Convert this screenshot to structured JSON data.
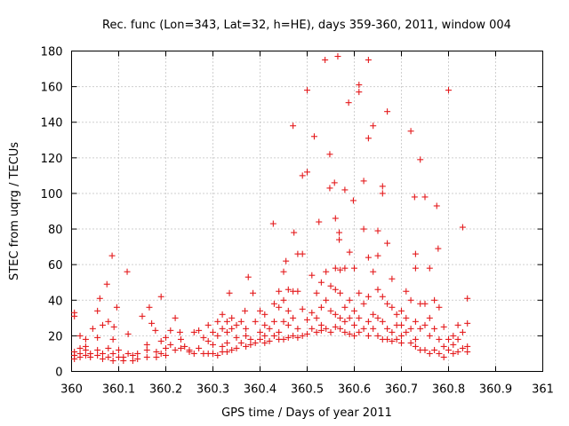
{
  "chart_data": {
    "type": "scatter",
    "title": "Rec. func (Lon=343, Lat=32, h=HE), days 359-360, 2011, window 004",
    "xlabel": "GPS time / Days of year 2011",
    "ylabel": "STEC from uqrg / TECUs",
    "xlim": [
      360,
      361
    ],
    "ylim": [
      0,
      180
    ],
    "xticks": [
      "360",
      "360.1",
      "360.2",
      "360.3",
      "360.4",
      "360.5",
      "360.6",
      "360.7",
      "360.8",
      "360.9",
      "361"
    ],
    "yticks": [
      "0",
      "20",
      "40",
      "60",
      "80",
      "100",
      "120",
      "140",
      "160",
      "180"
    ],
    "grid": true,
    "marker": "plus",
    "colors": {
      "series": "#e41a1c",
      "grid": "#a0a0a0",
      "axis": "#000000"
    },
    "series": [
      {
        "name": "STEC",
        "points": [
          [
            360.006,
            33
          ],
          [
            360.006,
            31
          ],
          [
            360.006,
            11
          ],
          [
            360.006,
            9
          ],
          [
            360.006,
            7
          ],
          [
            360.018,
            20
          ],
          [
            360.018,
            13
          ],
          [
            360.018,
            10
          ],
          [
            360.018,
            8
          ],
          [
            360.03,
            18
          ],
          [
            360.03,
            14
          ],
          [
            360.03,
            12
          ],
          [
            360.03,
            9
          ],
          [
            360.04,
            10
          ],
          [
            360.04,
            8
          ],
          [
            360.045,
            24
          ],
          [
            360.055,
            34
          ],
          [
            360.055,
            19
          ],
          [
            360.055,
            12
          ],
          [
            360.055,
            9
          ],
          [
            360.06,
            41
          ],
          [
            360.066,
            26
          ],
          [
            360.066,
            10
          ],
          [
            360.066,
            7
          ],
          [
            360.075,
            49
          ],
          [
            360.078,
            28
          ],
          [
            360.078,
            13
          ],
          [
            360.078,
            8
          ],
          [
            360.086,
            65
          ],
          [
            360.088,
            18
          ],
          [
            360.088,
            10
          ],
          [
            360.088,
            6
          ],
          [
            360.09,
            25
          ],
          [
            360.096,
            36
          ],
          [
            360.1,
            12
          ],
          [
            360.1,
            8
          ],
          [
            360.11,
            8
          ],
          [
            360.11,
            6
          ],
          [
            360.118,
            56
          ],
          [
            360.12,
            21
          ],
          [
            360.12,
            10
          ],
          [
            360.13,
            9
          ],
          [
            360.13,
            6
          ],
          [
            360.14,
            10
          ],
          [
            360.14,
            7
          ],
          [
            360.15,
            31
          ],
          [
            360.16,
            15
          ],
          [
            360.16,
            12
          ],
          [
            360.16,
            8
          ],
          [
            360.165,
            36
          ],
          [
            360.17,
            27
          ],
          [
            360.178,
            23
          ],
          [
            360.18,
            11
          ],
          [
            360.18,
            8
          ],
          [
            360.19,
            42
          ],
          [
            360.19,
            17
          ],
          [
            360.19,
            10
          ],
          [
            360.2,
            19
          ],
          [
            360.2,
            13
          ],
          [
            360.2,
            9
          ],
          [
            360.21,
            23
          ],
          [
            360.21,
            15
          ],
          [
            360.22,
            30
          ],
          [
            360.22,
            12
          ],
          [
            360.23,
            22
          ],
          [
            360.232,
            18
          ],
          [
            360.232,
            13
          ],
          [
            360.24,
            14
          ],
          [
            360.25,
            12
          ],
          [
            360.25,
            11
          ],
          [
            360.26,
            22
          ],
          [
            360.26,
            10
          ],
          [
            360.27,
            23
          ],
          [
            360.27,
            13
          ],
          [
            360.28,
            19
          ],
          [
            360.28,
            10
          ],
          [
            360.29,
            26
          ],
          [
            360.29,
            17
          ],
          [
            360.29,
            10
          ],
          [
            360.3,
            22
          ],
          [
            360.3,
            15
          ],
          [
            360.3,
            10
          ],
          [
            360.31,
            28
          ],
          [
            360.31,
            20
          ],
          [
            360.31,
            9
          ],
          [
            360.32,
            32
          ],
          [
            360.32,
            24
          ],
          [
            360.32,
            14
          ],
          [
            360.32,
            11
          ],
          [
            360.33,
            28
          ],
          [
            360.33,
            22
          ],
          [
            360.33,
            16
          ],
          [
            360.33,
            11
          ],
          [
            360.335,
            44
          ],
          [
            360.34,
            30
          ],
          [
            360.34,
            24
          ],
          [
            360.34,
            12
          ],
          [
            360.35,
            26
          ],
          [
            360.35,
            19
          ],
          [
            360.35,
            13
          ],
          [
            360.36,
            28
          ],
          [
            360.36,
            16
          ],
          [
            360.368,
            34
          ],
          [
            360.37,
            24
          ],
          [
            360.37,
            20
          ],
          [
            360.37,
            14
          ],
          [
            360.375,
            53
          ],
          [
            360.38,
            18
          ],
          [
            360.38,
            15
          ],
          [
            360.385,
            44
          ],
          [
            360.39,
            28
          ],
          [
            360.39,
            16
          ],
          [
            360.4,
            34
          ],
          [
            360.4,
            22
          ],
          [
            360.4,
            18
          ],
          [
            360.41,
            32
          ],
          [
            360.41,
            26
          ],
          [
            360.41,
            20
          ],
          [
            360.41,
            16
          ],
          [
            360.42,
            24
          ],
          [
            360.42,
            17
          ],
          [
            360.428,
            83
          ],
          [
            360.43,
            38
          ],
          [
            360.43,
            28
          ],
          [
            360.43,
            20
          ],
          [
            360.44,
            45
          ],
          [
            360.44,
            36
          ],
          [
            360.44,
            22
          ],
          [
            360.44,
            18
          ],
          [
            360.45,
            56
          ],
          [
            360.45,
            40
          ],
          [
            360.45,
            28
          ],
          [
            360.45,
            18
          ],
          [
            360.455,
            62
          ],
          [
            360.46,
            46
          ],
          [
            360.46,
            34
          ],
          [
            360.46,
            26
          ],
          [
            360.46,
            19
          ],
          [
            360.47,
            138
          ],
          [
            360.472,
            78
          ],
          [
            360.47,
            45
          ],
          [
            360.47,
            30
          ],
          [
            360.47,
            20
          ],
          [
            360.48,
            66
          ],
          [
            360.48,
            45
          ],
          [
            360.48,
            24
          ],
          [
            360.48,
            19
          ],
          [
            360.49,
            110
          ],
          [
            360.49,
            66
          ],
          [
            360.49,
            35
          ],
          [
            360.49,
            20
          ],
          [
            360.5,
            158
          ],
          [
            360.5,
            112
          ],
          [
            360.5,
            29
          ],
          [
            360.5,
            21
          ],
          [
            360.51,
            54
          ],
          [
            360.51,
            33
          ],
          [
            360.51,
            24
          ],
          [
            360.515,
            132
          ],
          [
            360.52,
            44
          ],
          [
            360.52,
            30
          ],
          [
            360.52,
            22
          ],
          [
            360.525,
            84
          ],
          [
            360.53,
            50
          ],
          [
            360.53,
            36
          ],
          [
            360.53,
            26
          ],
          [
            360.53,
            23
          ],
          [
            360.538,
            175
          ],
          [
            360.54,
            56
          ],
          [
            360.54,
            40
          ],
          [
            360.54,
            24
          ],
          [
            360.548,
            103
          ],
          [
            360.548,
            122
          ],
          [
            360.55,
            48
          ],
          [
            360.55,
            34
          ],
          [
            360.55,
            22
          ],
          [
            360.558,
            106
          ],
          [
            360.56,
            86
          ],
          [
            360.56,
            58
          ],
          [
            360.56,
            46
          ],
          [
            360.56,
            32
          ],
          [
            360.56,
            25
          ],
          [
            360.565,
            177
          ],
          [
            360.568,
            78
          ],
          [
            360.568,
            74
          ],
          [
            360.57,
            57
          ],
          [
            360.57,
            44
          ],
          [
            360.57,
            30
          ],
          [
            360.57,
            24
          ],
          [
            360.58,
            102
          ],
          [
            360.58,
            58
          ],
          [
            360.58,
            36
          ],
          [
            360.58,
            28
          ],
          [
            360.58,
            22
          ],
          [
            360.588,
            151
          ],
          [
            360.59,
            67
          ],
          [
            360.59,
            40
          ],
          [
            360.59,
            30
          ],
          [
            360.59,
            21
          ],
          [
            360.598,
            96
          ],
          [
            360.6,
            58
          ],
          [
            360.6,
            34
          ],
          [
            360.6,
            26
          ],
          [
            360.6,
            20
          ],
          [
            360.61,
            161
          ],
          [
            360.61,
            157
          ],
          [
            360.61,
            44
          ],
          [
            360.61,
            30
          ],
          [
            360.61,
            22
          ],
          [
            360.62,
            107
          ],
          [
            360.62,
            80
          ],
          [
            360.62,
            38
          ],
          [
            360.62,
            24
          ],
          [
            360.63,
            175
          ],
          [
            360.63,
            131
          ],
          [
            360.63,
            64
          ],
          [
            360.63,
            42
          ],
          [
            360.63,
            28
          ],
          [
            360.63,
            20
          ],
          [
            360.64,
            138
          ],
          [
            360.64,
            56
          ],
          [
            360.64,
            32
          ],
          [
            360.64,
            24
          ],
          [
            360.65,
            79
          ],
          [
            360.65,
            65
          ],
          [
            360.65,
            46
          ],
          [
            360.65,
            30
          ],
          [
            360.65,
            20
          ],
          [
            360.66,
            104
          ],
          [
            360.66,
            100
          ],
          [
            360.66,
            42
          ],
          [
            360.66,
            28
          ],
          [
            360.66,
            18
          ],
          [
            360.67,
            146
          ],
          [
            360.67,
            72
          ],
          [
            360.67,
            38
          ],
          [
            360.67,
            24
          ],
          [
            360.67,
            18
          ],
          [
            360.68,
            52
          ],
          [
            360.68,
            36
          ],
          [
            360.68,
            22
          ],
          [
            360.68,
            17
          ],
          [
            360.69,
            32
          ],
          [
            360.69,
            26
          ],
          [
            360.69,
            18
          ],
          [
            360.7,
            34
          ],
          [
            360.7,
            26
          ],
          [
            360.7,
            20
          ],
          [
            360.7,
            16
          ],
          [
            360.71,
            45
          ],
          [
            360.71,
            30
          ],
          [
            360.71,
            22
          ],
          [
            360.72,
            135
          ],
          [
            360.72,
            40
          ],
          [
            360.72,
            24
          ],
          [
            360.72,
            16
          ],
          [
            360.728,
            98
          ],
          [
            360.73,
            66
          ],
          [
            360.73,
            58
          ],
          [
            360.73,
            28
          ],
          [
            360.73,
            18
          ],
          [
            360.73,
            14
          ],
          [
            360.74,
            119
          ],
          [
            360.74,
            38
          ],
          [
            360.74,
            24
          ],
          [
            360.74,
            12
          ],
          [
            360.75,
            98
          ],
          [
            360.75,
            38
          ],
          [
            360.75,
            26
          ],
          [
            360.75,
            12
          ],
          [
            360.76,
            58
          ],
          [
            360.76,
            30
          ],
          [
            360.76,
            20
          ],
          [
            360.76,
            10
          ],
          [
            360.77,
            40
          ],
          [
            360.77,
            24
          ],
          [
            360.77,
            12
          ],
          [
            360.775,
            93
          ],
          [
            360.778,
            69
          ],
          [
            360.78,
            36
          ],
          [
            360.78,
            18
          ],
          [
            360.78,
            10
          ],
          [
            360.79,
            25
          ],
          [
            360.79,
            14
          ],
          [
            360.79,
            8
          ],
          [
            360.8,
            158
          ],
          [
            360.8,
            18
          ],
          [
            360.8,
            12
          ],
          [
            360.81,
            20
          ],
          [
            360.81,
            15
          ],
          [
            360.81,
            10
          ],
          [
            360.82,
            26
          ],
          [
            360.82,
            18
          ],
          [
            360.82,
            11
          ],
          [
            360.83,
            81
          ],
          [
            360.83,
            22
          ],
          [
            360.83,
            13
          ],
          [
            360.84,
            41
          ],
          [
            360.84,
            27
          ],
          [
            360.84,
            14
          ],
          [
            360.84,
            11
          ]
        ]
      }
    ]
  }
}
